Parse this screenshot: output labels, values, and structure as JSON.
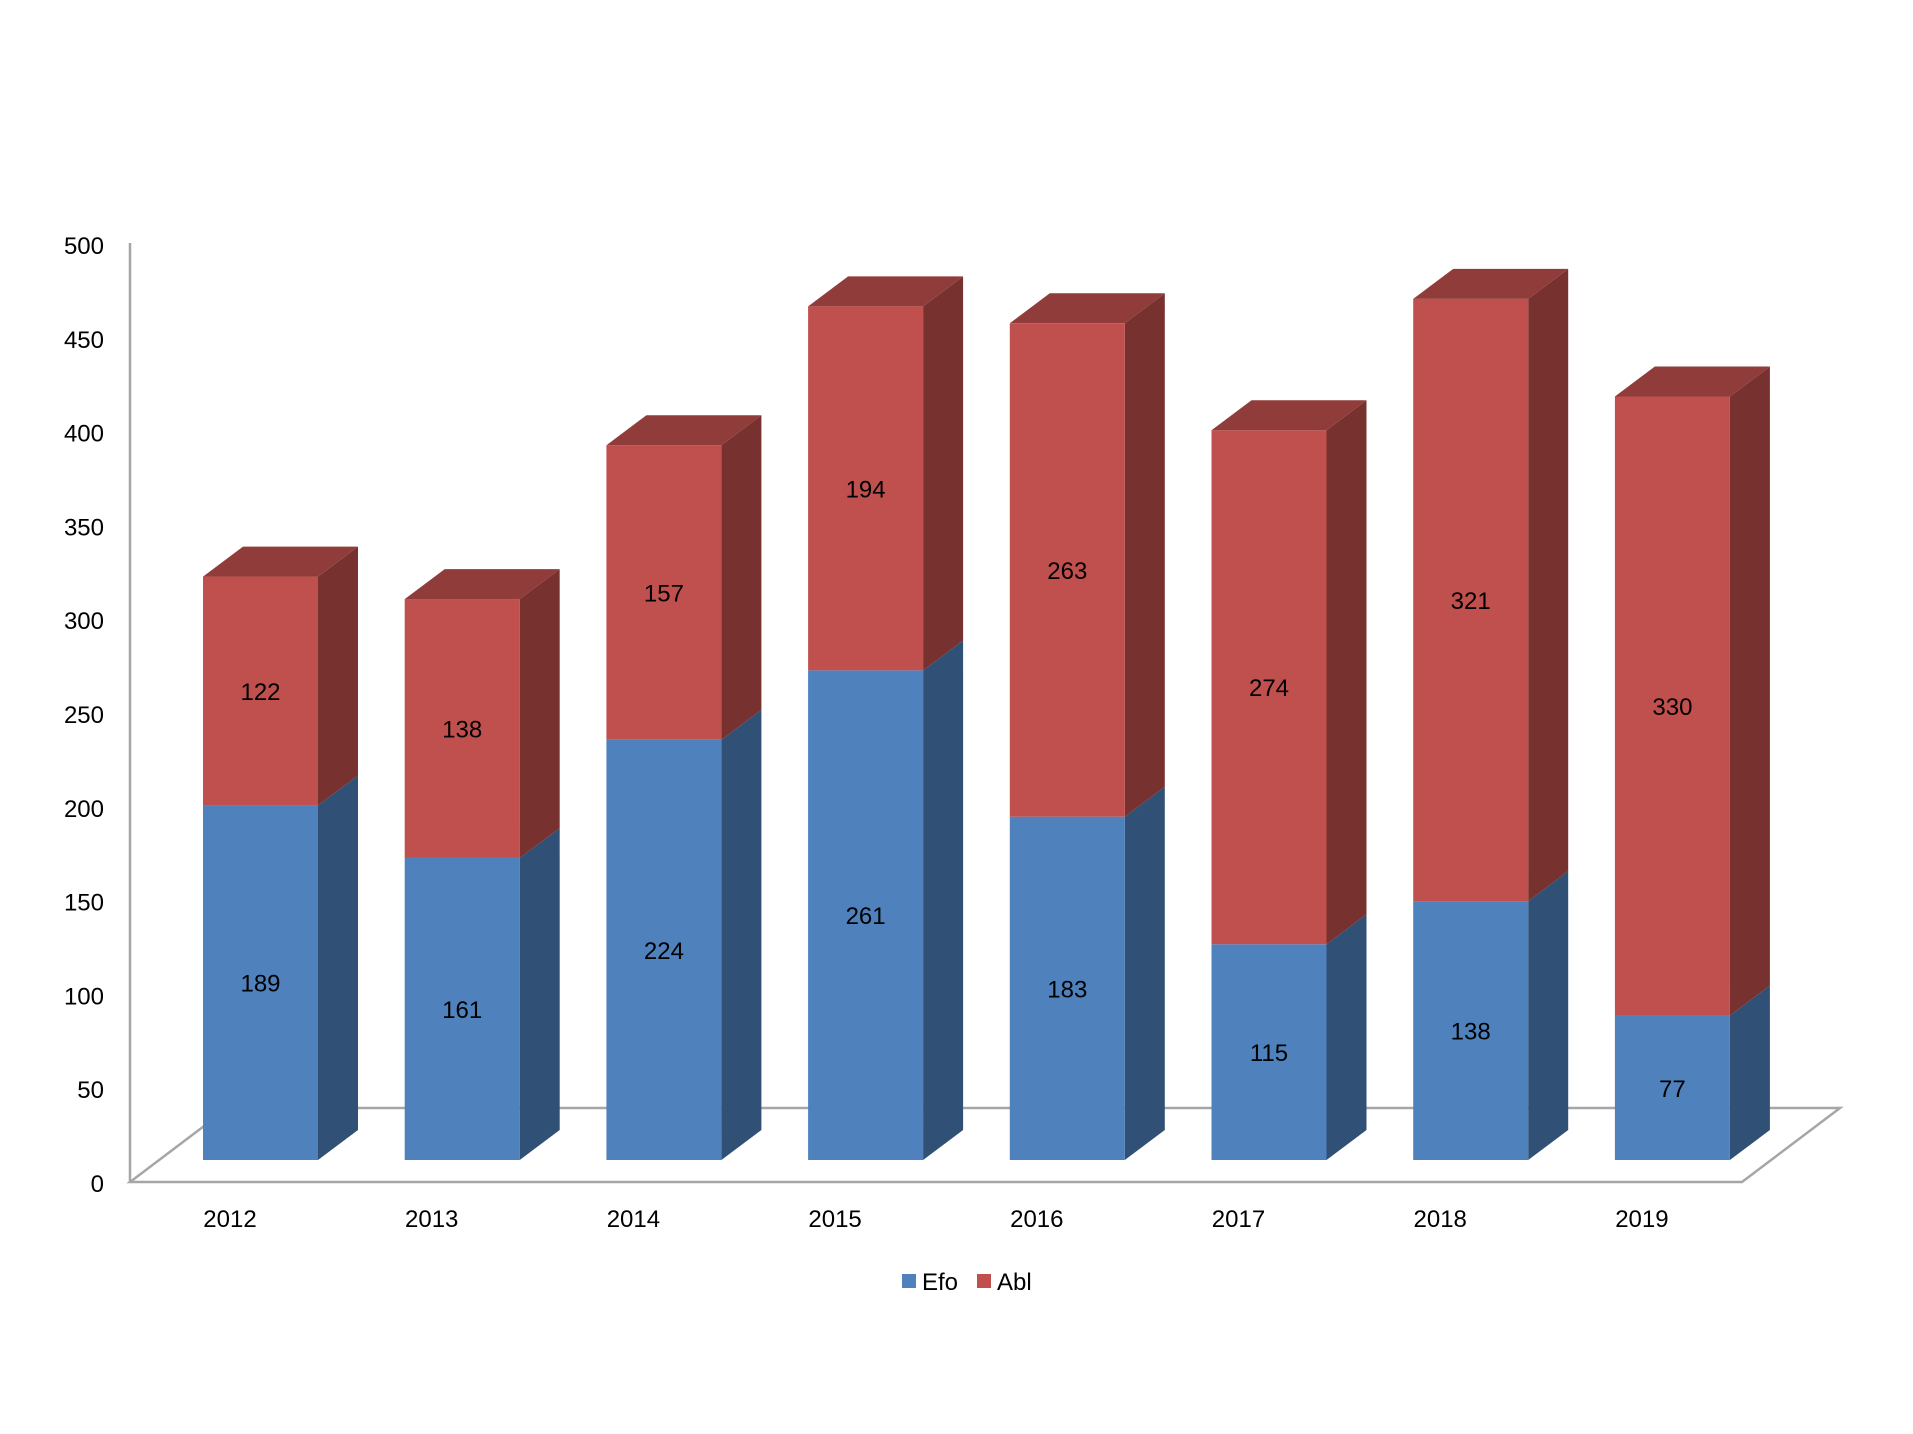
{
  "chart_data": {
    "type": "bar",
    "stacked": true,
    "style": "3d",
    "categories": [
      "2012",
      "2013",
      "2014",
      "2015",
      "2016",
      "2017",
      "2018",
      "2019"
    ],
    "series": [
      {
        "name": "Efo",
        "color": "#4F81BD",
        "values": [
          189,
          161,
          224,
          261,
          183,
          115,
          138,
          77
        ]
      },
      {
        "name": "Abl",
        "color": "#C0504D",
        "values": [
          122,
          138,
          157,
          194,
          263,
          274,
          321,
          330
        ]
      }
    ],
    "ylim": [
      0,
      500
    ],
    "yticks": [
      "0",
      "50",
      "100",
      "150",
      "200",
      "250",
      "300",
      "350",
      "400",
      "450",
      "500"
    ],
    "data_labels": true,
    "grid": false,
    "legend_position": "bottom"
  }
}
